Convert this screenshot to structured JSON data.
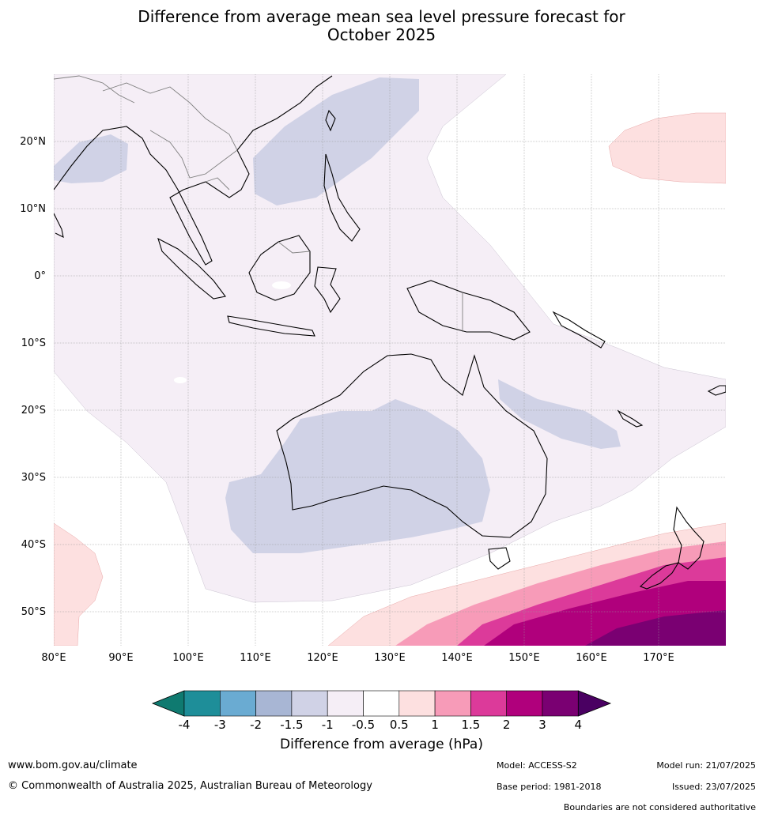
{
  "title_line1": "Difference from average mean sea level pressure forecast for",
  "title_line2": "October 2025",
  "axes": {
    "lon_labels": [
      "80°E",
      "90°E",
      "100°E",
      "110°E",
      "120°E",
      "130°E",
      "140°E",
      "150°E",
      "160°E",
      "170°E"
    ],
    "lat_labels": [
      "20°N",
      "10°N",
      "0°",
      "10°S",
      "20°S",
      "30°S",
      "40°S",
      "50°S"
    ]
  },
  "colorbar": {
    "ticks": [
      "-4",
      "-3",
      "-2",
      "-1.5",
      "-1",
      "-0.5",
      "0.5",
      "1",
      "1.5",
      "2",
      "3",
      "4"
    ],
    "colors": [
      "#0f7a70",
      "#1e8e99",
      "#6aabd2",
      "#a8b6d4",
      "#d0d2e6",
      "#f5eef6",
      "#ffffff",
      "#fde0e0",
      "#f79bb8",
      "#dc3a9a",
      "#b0007c",
      "#7a0072",
      "#4a0062"
    ],
    "label": "Difference from average (hPa)"
  },
  "map_colors": {
    "land_outline": "#000000",
    "border": "#808080",
    "grid": "#999999",
    "near_zero_neg": "#f5eef6",
    "neg_1": "#d0d2e6",
    "pos_05": "#fde0e0",
    "pos_1": "#f79bb8",
    "pos_15": "#dc3a9a",
    "pos_2": "#b0007c",
    "pos_3": "#7a0072"
  },
  "footer": {
    "url": "www.bom.gov.au/climate",
    "copyright": "© Commonwealth of Australia 2025, Australian Bureau of Meteorology",
    "model": "Model: ACCESS-S2",
    "base_period": "Base period: 1981-2018",
    "model_run": "Model run: 21/07/2025",
    "issued": "Issued: 23/07/2025",
    "disclaimer": "Boundaries are not considered authoritative"
  }
}
